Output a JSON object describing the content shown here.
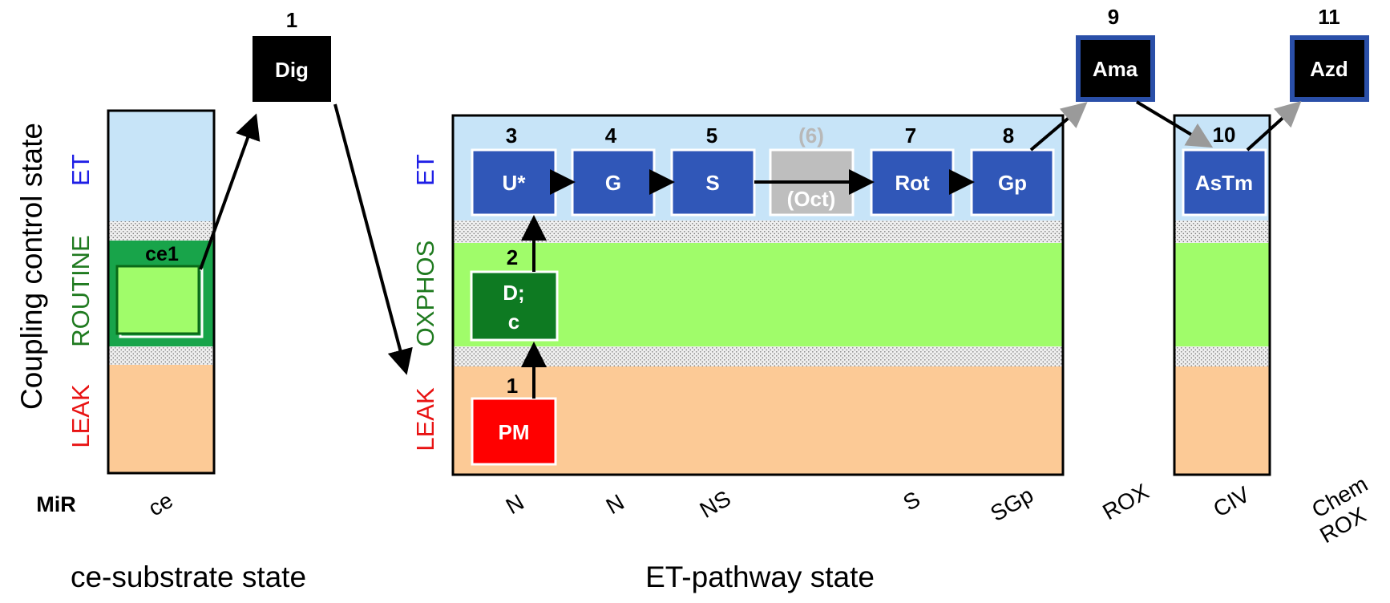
{
  "y_axis_title": "Coupling control state",
  "colors": {
    "et_blue": "#c7e4f8",
    "oxphos_green": "#a0fc6a",
    "routine_green": "#18a44a",
    "leak_peach": "#fcca96",
    "box_blue": "#3057b8",
    "box_green": "#0e7a22",
    "box_red": "#ff0000",
    "box_gray": "#bebebe",
    "box_black": "#000000",
    "label_blue": "#1e1ee6",
    "label_green": "#1f7a1f",
    "label_red": "#e81212"
  },
  "left_panel": {
    "state_labels": {
      "et": "ET",
      "routine": "ROUTINE",
      "leak": "LEAK"
    },
    "ce1_label": "ce1",
    "mir_label": "MiR",
    "substrate_label": "ce",
    "bottom_title": "ce-substrate state"
  },
  "dig": {
    "number": "1",
    "label": "Dig"
  },
  "main_panel": {
    "state_labels": {
      "et": "ET",
      "oxphos": "OXPHOS",
      "leak": "LEAK"
    },
    "boxes": {
      "pm": {
        "number": "1",
        "label": "PM"
      },
      "dc": {
        "number": "2",
        "line1": "D;",
        "line2": "c"
      },
      "u": {
        "number": "3",
        "label": "U*"
      },
      "g": {
        "number": "4",
        "label": "G"
      },
      "s": {
        "number": "5",
        "label": "S"
      },
      "oct": {
        "number": "(6)",
        "label": "(Oct)"
      },
      "rot": {
        "number": "7",
        "label": "Rot"
      },
      "gp": {
        "number": "8",
        "label": "Gp"
      }
    },
    "bottom_labels": [
      "N",
      "N",
      "NS",
      "S",
      "SGp"
    ],
    "bottom_title": "ET-pathway state"
  },
  "ama": {
    "number": "9",
    "label": "Ama",
    "bottom_label": "ROX"
  },
  "civ_panel": {
    "number": "10",
    "label": "AsTm",
    "bottom_label": "CIV"
  },
  "azd": {
    "number": "11",
    "label": "Azd",
    "bottom_line1": "Chem",
    "bottom_line2": "ROX"
  }
}
